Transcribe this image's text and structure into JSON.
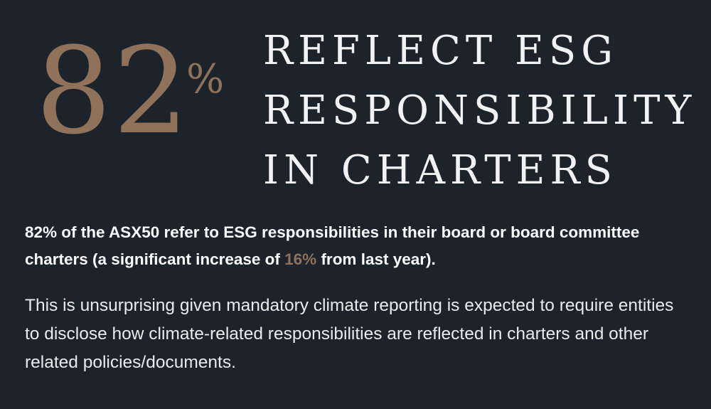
{
  "stat": {
    "number": "82",
    "unit": "%"
  },
  "headline": {
    "lines": [
      "REFLECT ESG",
      "RESPONSIBILITY",
      "IN CHARTERS"
    ]
  },
  "lead": {
    "text_before": "82% of the ASX50 refer to ESG responsibilities in their board or board committee charters (a significant increase of ",
    "highlight": "16%",
    "text_after": " from last year)."
  },
  "body": {
    "text": "This is unsurprising given mandatory climate reporting is expected to require entities to disclose how climate-related responsibilities are reflected in charters and other related policies/documents."
  },
  "colors": {
    "background": "#1d232b",
    "accent": "#8f7259",
    "text": "#ffffff"
  }
}
